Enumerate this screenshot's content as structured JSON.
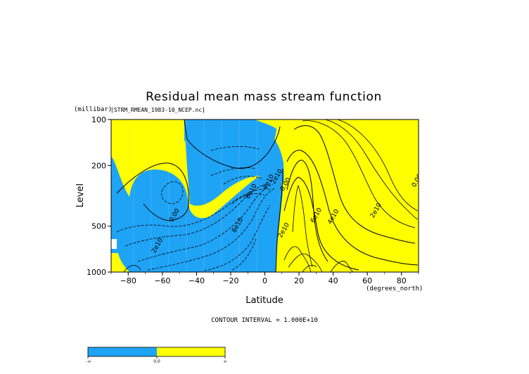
{
  "chart_data": {
    "type": "contour",
    "title": "Residual mean mass stream function",
    "file_label": "[STRM_RMEAN_1983-10_NCEP.nc]",
    "ylabel": "Level",
    "yunit": "(millibar)",
    "xlabel": "Latitude",
    "xunit": "(degrees_north)",
    "xlim": [
      -90,
      90
    ],
    "ylim": [
      1000,
      100
    ],
    "y_scale": "log",
    "x_ticks": [
      -80,
      -60,
      -40,
      -20,
      0,
      20,
      40,
      60,
      80
    ],
    "x_tick_labels": [
      "−80",
      "−60",
      "−40",
      "−20",
      "0",
      "20",
      "40",
      "60",
      "80"
    ],
    "y_ticks": [
      100,
      200,
      500,
      1000
    ],
    "y_tick_labels": [
      "100",
      "200",
      "500",
      "1000"
    ],
    "contour_interval_text": "CONTOUR INTERVAL = 1.000E+10",
    "contour_labels": [
      {
        "text": "0.00",
        "lat": -52,
        "lev": 430
      },
      {
        "text": "2e10",
        "lat": -62,
        "lev": 680
      },
      {
        "text": "8e10",
        "lat": -15,
        "lev": 500
      },
      {
        "text": "6e10",
        "lat": -7,
        "lev": 300
      },
      {
        "text": "4e10",
        "lat": 3,
        "lev": 260
      },
      {
        "text": "2e10",
        "lat": 8,
        "lev": 240
      },
      {
        "text": "0.00",
        "lat": 13,
        "lev": 270
      },
      {
        "text": "2e10",
        "lat": 12,
        "lev": 540
      },
      {
        "text": "6e10",
        "lat": 31,
        "lev": 430
      },
      {
        "text": "4e10",
        "lat": 41,
        "lev": 440
      },
      {
        "text": "2e10",
        "lat": 66,
        "lev": 400
      },
      {
        "text": "0.00",
        "lat": 90,
        "lev": 255
      }
    ],
    "colors": {
      "negative": "#1fa3f5",
      "positive": "#ffff00"
    },
    "colorbar": {
      "labels": [
        "-∞",
        "0.0",
        "∞"
      ]
    }
  }
}
